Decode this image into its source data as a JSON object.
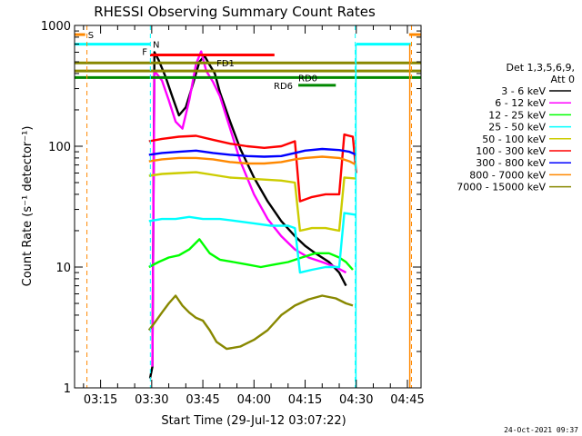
{
  "chart_data": {
    "type": "line",
    "title": "RHESSI Observing Summary Count Rates",
    "xlabel": "Start Time (29-Jul-12 03:07:22)",
    "ylabel": "Count Rate (s⁻¹ detector⁻¹)",
    "y_scale": "log",
    "ylim": [
      1,
      1000
    ],
    "xlim_minutes": [
      187.37,
      289
    ],
    "x_ticks": [
      {
        "label": "03:15",
        "min": 195
      },
      {
        "label": "03:30",
        "min": 210
      },
      {
        "label": "03:45",
        "min": 225
      },
      {
        "label": "04:00",
        "min": 240
      },
      {
        "label": "04:15",
        "min": 255
      },
      {
        "label": "04:30",
        "min": 270
      },
      {
        "label": "04:45",
        "min": 285
      }
    ],
    "y_ticks": [
      {
        "label": "1",
        "v": 1
      },
      {
        "label": "10",
        "v": 10
      },
      {
        "label": "100",
        "v": 100
      },
      {
        "label": "1000",
        "v": 1000
      }
    ],
    "legend_title": [
      "Det 1,3,5,6,9,",
      "Att 0"
    ],
    "legend_placement": "right",
    "timestamp": "24-Oct-2021 09:37",
    "series": [
      {
        "name": "3 - 6 keV",
        "color": "#000000",
        "points": [
          [
            209.5,
            1.2
          ],
          [
            210.2,
            1.5
          ],
          [
            210.8,
            600
          ],
          [
            212,
            520
          ],
          [
            214,
            380
          ],
          [
            216,
            260
          ],
          [
            218,
            180
          ],
          [
            220,
            210
          ],
          [
            222,
            320
          ],
          [
            224,
            500
          ],
          [
            225.5,
            560
          ],
          [
            227,
            470
          ],
          [
            228.5,
            400
          ],
          [
            230,
            280
          ],
          [
            233,
            160
          ],
          [
            236,
            95
          ],
          [
            240,
            55
          ],
          [
            244,
            35
          ],
          [
            248,
            24
          ],
          [
            252,
            18
          ],
          [
            255,
            15
          ],
          [
            258,
            13
          ],
          [
            262,
            11
          ],
          [
            265,
            9
          ],
          [
            267,
            7
          ]
        ]
      },
      {
        "name": "6 - 12 keV",
        "color": "#ff00ff",
        "points": [
          [
            210.2,
            1.5
          ],
          [
            210.8,
            420
          ],
          [
            213,
            350
          ],
          [
            215,
            240
          ],
          [
            217,
            160
          ],
          [
            219,
            140
          ],
          [
            221,
            240
          ],
          [
            223,
            480
          ],
          [
            224.5,
            610
          ],
          [
            226,
            420
          ],
          [
            228,
            340
          ],
          [
            230,
            260
          ],
          [
            233,
            140
          ],
          [
            236,
            75
          ],
          [
            240,
            40
          ],
          [
            244,
            25
          ],
          [
            248,
            18
          ],
          [
            252,
            14
          ],
          [
            256,
            12
          ],
          [
            260,
            11
          ],
          [
            264,
            10
          ],
          [
            267,
            9
          ]
        ]
      },
      {
        "name": "12 - 25 keV",
        "color": "#00ff00",
        "points": [
          [
            209.2,
            10
          ],
          [
            212,
            11
          ],
          [
            215,
            12
          ],
          [
            218,
            12.5
          ],
          [
            221,
            14
          ],
          [
            224,
            17
          ],
          [
            227,
            13
          ],
          [
            230,
            11.5
          ],
          [
            234,
            11
          ],
          [
            238,
            10.5
          ],
          [
            242,
            10
          ],
          [
            246,
            10.5
          ],
          [
            250,
            11
          ],
          [
            254,
            12
          ],
          [
            258,
            13
          ],
          [
            262,
            13
          ],
          [
            265,
            12
          ],
          [
            267,
            11
          ],
          [
            269,
            9.5
          ]
        ]
      },
      {
        "name": "25 - 50 keV",
        "color": "#00ffff",
        "points": [
          [
            209.2,
            24
          ],
          [
            213,
            25
          ],
          [
            217,
            25
          ],
          [
            221,
            26
          ],
          [
            225,
            25
          ],
          [
            230,
            25
          ],
          [
            235,
            24
          ],
          [
            240,
            23
          ],
          [
            245,
            22
          ],
          [
            250,
            22
          ],
          [
            252,
            21
          ],
          [
            253.5,
            9
          ],
          [
            257,
            9.5
          ],
          [
            261,
            10
          ],
          [
            265,
            10
          ],
          [
            266.5,
            28
          ],
          [
            270,
            27
          ]
        ]
      },
      {
        "name": "50 - 100 keV",
        "color": "#cccc00",
        "points": [
          [
            209.2,
            57
          ],
          [
            213,
            59
          ],
          [
            218,
            60
          ],
          [
            223,
            61
          ],
          [
            228,
            58
          ],
          [
            233,
            55
          ],
          [
            238,
            54
          ],
          [
            243,
            53
          ],
          [
            248,
            52
          ],
          [
            252,
            50
          ],
          [
            253.5,
            20
          ],
          [
            257,
            21
          ],
          [
            261,
            21
          ],
          [
            265,
            20
          ],
          [
            266.5,
            55
          ],
          [
            270,
            54
          ]
        ]
      },
      {
        "name": "100 - 300 keV",
        "color": "#ff0000",
        "points": [
          [
            209.2,
            110
          ],
          [
            213,
            115
          ],
          [
            218,
            120
          ],
          [
            223,
            122
          ],
          [
            228,
            113
          ],
          [
            233,
            105
          ],
          [
            238,
            100
          ],
          [
            243,
            97
          ],
          [
            248,
            100
          ],
          [
            252,
            110
          ],
          [
            253.5,
            35
          ],
          [
            257,
            38
          ],
          [
            261,
            40
          ],
          [
            265,
            40
          ],
          [
            266.5,
            125
          ],
          [
            269,
            120
          ],
          [
            270,
            60
          ]
        ]
      },
      {
        "name": "300 - 800 keV",
        "color": "#0000ff",
        "points": [
          [
            209.2,
            85
          ],
          [
            213,
            88
          ],
          [
            218,
            90
          ],
          [
            223,
            92
          ],
          [
            228,
            88
          ],
          [
            233,
            85
          ],
          [
            238,
            83
          ],
          [
            243,
            82
          ],
          [
            248,
            83
          ],
          [
            252,
            88
          ],
          [
            255,
            92
          ],
          [
            260,
            95
          ],
          [
            265,
            93
          ],
          [
            268,
            90
          ],
          [
            270,
            85
          ]
        ]
      },
      {
        "name": "800 - 7000 keV",
        "color": "#ff8800",
        "points": [
          [
            209.2,
            75
          ],
          [
            213,
            78
          ],
          [
            218,
            80
          ],
          [
            223,
            80
          ],
          [
            228,
            78
          ],
          [
            233,
            74
          ],
          [
            238,
            72
          ],
          [
            243,
            72
          ],
          [
            248,
            74
          ],
          [
            252,
            78
          ],
          [
            255,
            80
          ],
          [
            260,
            82
          ],
          [
            265,
            80
          ],
          [
            268,
            75
          ],
          [
            270,
            70
          ]
        ]
      },
      {
        "name": "7000 - 15000 keV",
        "color": "#888800",
        "points": [
          [
            209.2,
            3.0
          ],
          [
            211,
            3.5
          ],
          [
            213,
            4.2
          ],
          [
            215,
            5.0
          ],
          [
            217,
            5.8
          ],
          [
            219,
            4.8
          ],
          [
            221,
            4.2
          ],
          [
            223,
            3.8
          ],
          [
            225,
            3.6
          ],
          [
            227,
            3.0
          ],
          [
            229,
            2.4
          ],
          [
            232,
            2.1
          ],
          [
            236,
            2.2
          ],
          [
            240,
            2.5
          ],
          [
            244,
            3.0
          ],
          [
            248,
            4.0
          ],
          [
            252,
            4.8
          ],
          [
            256,
            5.4
          ],
          [
            260,
            5.8
          ],
          [
            264,
            5.5
          ],
          [
            267,
            5.0
          ],
          [
            269,
            4.8
          ]
        ]
      }
    ],
    "state_bars": [
      {
        "label": "S",
        "color": "#ff8800",
        "x0": 187.37,
        "x1": 190.5,
        "y": 840,
        "label_side": "end"
      },
      {
        "label": "N",
        "color": "#00ffff",
        "x0": 187.37,
        "x1": 209.5,
        "y": 700,
        "label_side": "end"
      },
      {
        "label": "",
        "color": "#00ffff",
        "x0": 270,
        "x1": 286,
        "y": 700,
        "label_side": "none"
      },
      {
        "label": "",
        "color": "#ff8800",
        "x0": 285.5,
        "x1": 289,
        "y": 840,
        "label_side": "none"
      },
      {
        "label": "F",
        "color": "#ff0000",
        "x0": 209.5,
        "x1": 246,
        "y": 570,
        "label_side": "start"
      },
      {
        "label": "FD1",
        "color": "#888800",
        "x0": 187.37,
        "x1": 289,
        "y": 490,
        "label_side": "inline",
        "label_x": 229
      },
      {
        "label": "",
        "color": "#888800",
        "x0": 187.37,
        "x1": 289,
        "y": 420,
        "label_side": "none"
      },
      {
        "label": "RD0",
        "color": "#008800",
        "x0": 187.37,
        "x1": 289,
        "y": 370,
        "label_side": "inline",
        "label_x": 253
      },
      {
        "label": "RD6",
        "color": "#008800",
        "x0": 253,
        "x1": 264,
        "y": 320,
        "label_side": "start_left"
      }
    ],
    "vlines": [
      {
        "min": 191,
        "color": "#ff8800"
      },
      {
        "min": 209.6,
        "color": "#00ffff"
      },
      {
        "min": 269.7,
        "color": "#00ffff"
      },
      {
        "min": 286.2,
        "color": "#ff8800"
      }
    ],
    "vlines_solid": [
      {
        "min": 269.9,
        "color": "#00ffff"
      },
      {
        "min": 285.7,
        "color": "#ff8800"
      }
    ]
  }
}
